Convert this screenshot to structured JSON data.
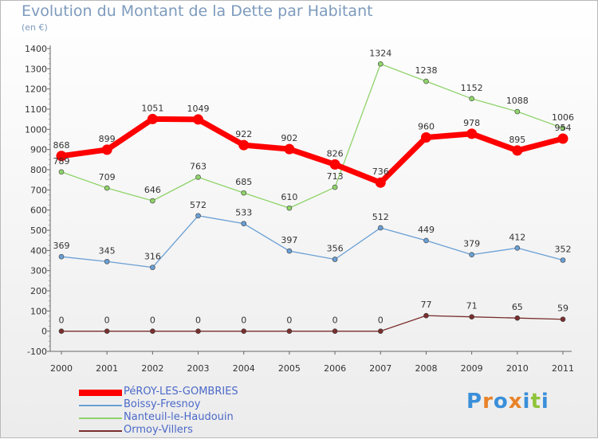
{
  "chart_data": {
    "type": "line",
    "title": "Evolution du Montant de la Dette par Habitant",
    "subtitle": "(en €)",
    "x": [
      "2000",
      "2001",
      "2002",
      "2003",
      "2004",
      "2005",
      "2006",
      "2007",
      "2008",
      "2009",
      "2010",
      "2011"
    ],
    "yticks": [
      "-100",
      "0",
      "100",
      "200",
      "300",
      "400",
      "500",
      "600",
      "700",
      "800",
      "900",
      "1000",
      "1100",
      "1200",
      "1300",
      "1400"
    ],
    "ylim": [
      -100,
      1400
    ],
    "grid": false,
    "legend_position": "bottom-left",
    "series": [
      {
        "name": "PéROY-LES-GOMBRIES",
        "color": "#ff0000",
        "values": [
          868,
          899,
          1051,
          1049,
          922,
          902,
          826,
          736,
          960,
          978,
          895,
          954
        ],
        "labels": [
          "868",
          "899",
          "1051",
          "1049",
          "922",
          "902",
          "826",
          "736",
          "960",
          "978",
          "895",
          "954"
        ]
      },
      {
        "name": "Boissy-Fresnoy",
        "color": "#6a9fd4",
        "values": [
          369,
          345,
          316,
          572,
          533,
          397,
          356,
          512,
          449,
          379,
          412,
          352
        ],
        "labels": [
          "369",
          "345",
          "316",
          "572",
          "533",
          "397",
          "356",
          "512",
          "449",
          "379",
          "412",
          "352"
        ]
      },
      {
        "name": "Nanteuil-le-Haudouin",
        "color": "#8fd36a",
        "values": [
          789,
          709,
          646,
          763,
          685,
          610,
          713,
          1324,
          1238,
          1152,
          1088,
          1006
        ],
        "labels": [
          "789",
          "709",
          "646",
          "763",
          "685",
          "610",
          "713",
          "1324",
          "1238",
          "1152",
          "1088",
          "1006"
        ]
      },
      {
        "name": "Ormoy-Villers",
        "color": "#7a2e2e",
        "values": [
          0,
          0,
          0,
          0,
          0,
          0,
          0,
          0,
          77,
          71,
          65,
          59
        ],
        "labels": [
          "0",
          "0",
          "0",
          "0",
          "0",
          "0",
          "0",
          "0",
          "77",
          "71",
          "65",
          "59"
        ]
      }
    ]
  },
  "logo": {
    "letters": [
      "P",
      "r",
      "o",
      "x",
      "i",
      "t",
      "i"
    ],
    "colors": [
      "#3a8fd9",
      "#e8832a",
      "#3a8fd9",
      "#e8832a",
      "#3a8fd9",
      "#8fc43a",
      "#3a8fd9"
    ]
  }
}
